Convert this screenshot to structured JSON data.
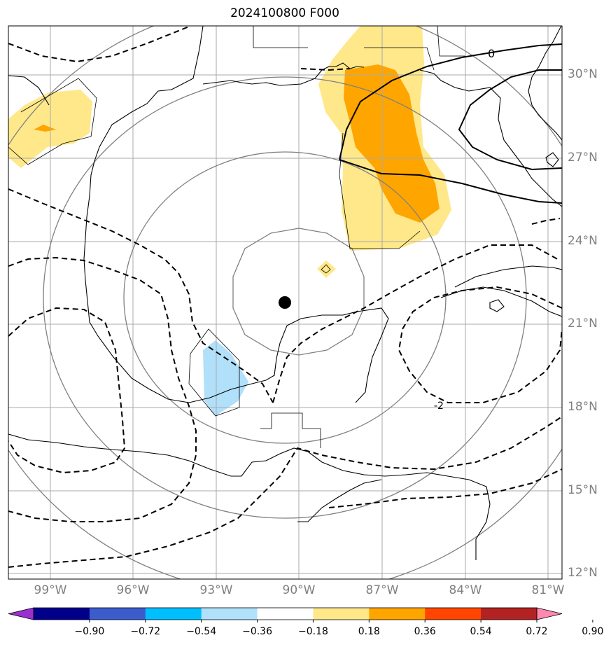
{
  "title": "2024100800 F000",
  "latitude_labels": [
    "30°N",
    "27°N",
    "24°N",
    "21°N",
    "18°N",
    "15°N",
    "12°N"
  ],
  "longitude_labels": [
    "99°W",
    "96°W",
    "93°W",
    "90°W",
    "87°W",
    "84°W",
    "81°W"
  ],
  "contour_labels": [
    "0",
    "-2"
  ],
  "colorbar": {
    "tick_labels": [
      "−0.90",
      "−0.72",
      "−0.54",
      "−0.36",
      "−0.18",
      "0.18",
      "0.36",
      "0.54",
      "0.72",
      "0.90"
    ],
    "colors": [
      "#9b30d0",
      "#00008b",
      "#3c5ccc",
      "#00bfff",
      "#b0e0fa",
      "#ffffff",
      "#ffe88a",
      "#ffa500",
      "#ff4500",
      "#b22222",
      "#ff88b0"
    ]
  },
  "colors": {
    "positive_low": "#ffe88a",
    "positive_mid": "#ffa500",
    "negative_low": "#b0e0fa",
    "grid": "#aaaaaa",
    "range_rings": "#808080",
    "center_marker": "#000000"
  }
}
